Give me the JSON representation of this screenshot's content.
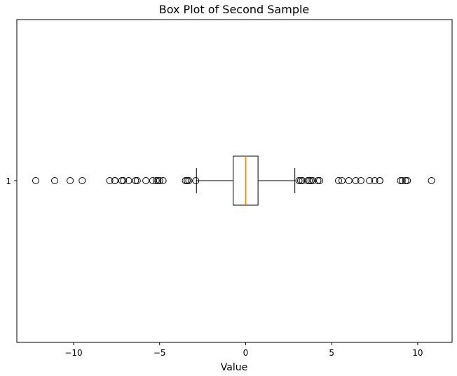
{
  "chart_data": {
    "type": "boxplot",
    "title": "Box Plot of Second Sample",
    "xlabel": "Value",
    "ylabel": "",
    "orientation": "horizontal",
    "xlim": [
      -13.3,
      12.0
    ],
    "x_ticks": [
      -10,
      -5,
      0,
      5,
      10
    ],
    "x_tick_labels": [
      "−10",
      "−5",
      "0",
      "5",
      "10"
    ],
    "y_tick_labels": [
      "1"
    ],
    "grid": false,
    "colors": {
      "box": "#000000",
      "median": "#ff7f0e",
      "flier": "#000000"
    },
    "series": [
      {
        "category": "1",
        "whisker_low": -2.86,
        "q1": -0.72,
        "median": 0.0,
        "q3": 0.72,
        "whisker_high": 2.86,
        "outliers": [
          -12.2,
          -11.1,
          -10.2,
          -9.5,
          -7.9,
          -7.6,
          -7.6,
          -7.2,
          -7.1,
          -6.8,
          -6.4,
          -6.3,
          -5.8,
          -5.4,
          -5.2,
          -5.1,
          -5.0,
          -4.8,
          -3.5,
          -3.4,
          -3.4,
          -3.3,
          -2.9,
          3.1,
          3.2,
          3.3,
          3.6,
          3.7,
          3.8,
          3.9,
          4.2,
          4.3,
          5.4,
          5.6,
          6.0,
          6.4,
          6.7,
          7.2,
          7.5,
          7.8,
          7.8,
          9.0,
          9.1,
          9.3,
          9.4,
          10.8
        ]
      }
    ]
  }
}
